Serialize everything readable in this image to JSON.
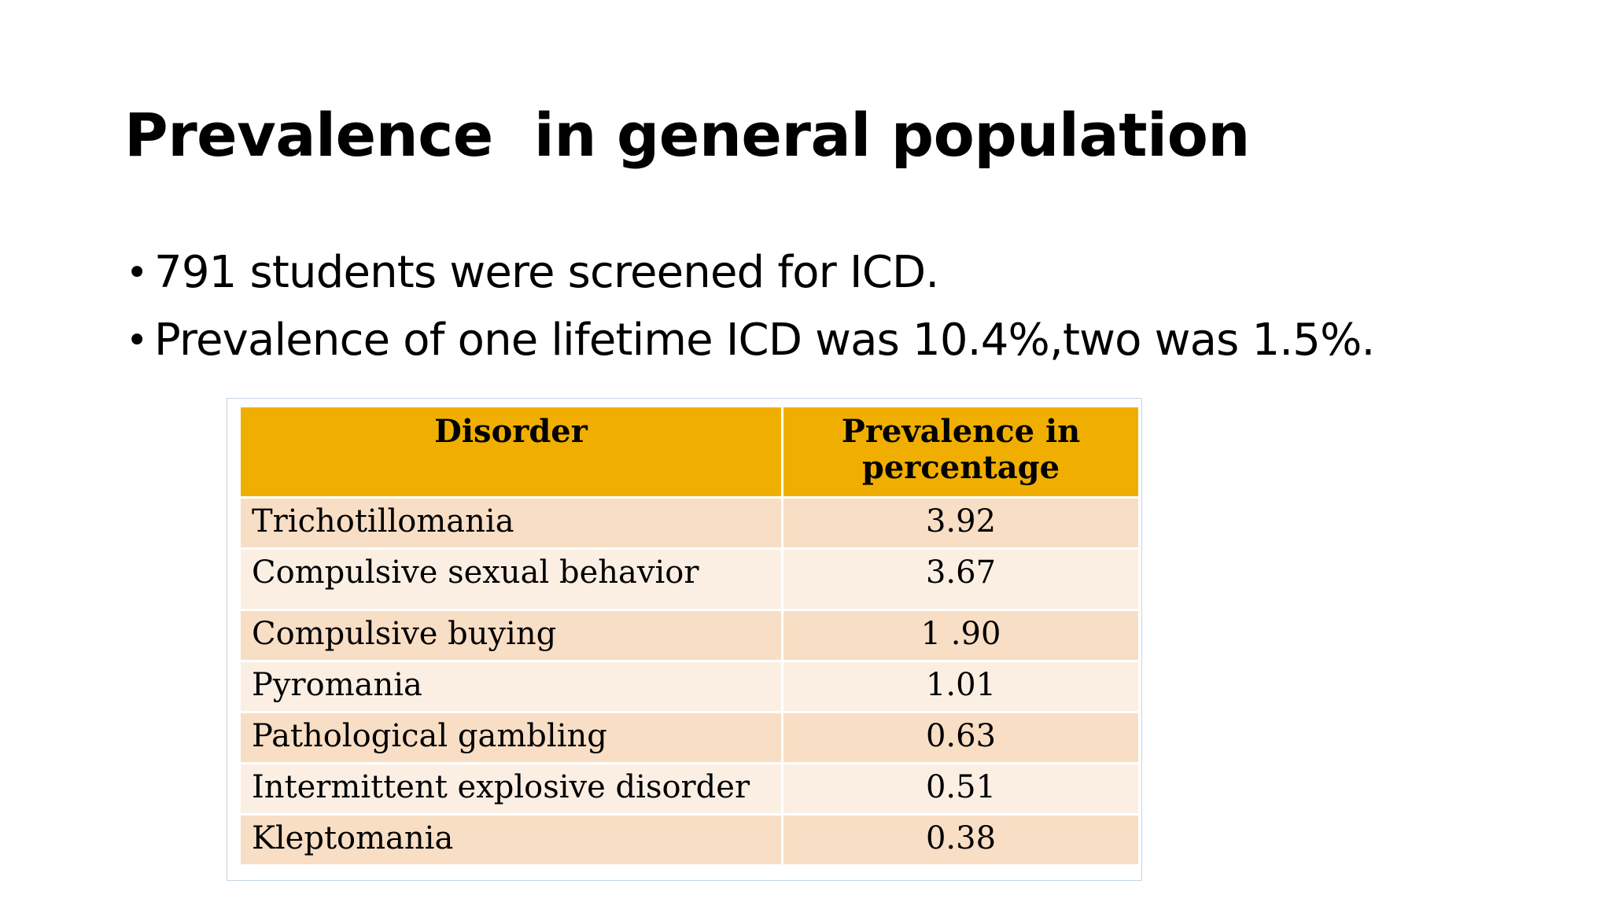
{
  "slide": {
    "title": "Prevalence  in general population",
    "bullets": [
      "791 students were screened for ICD.",
      "Prevalence of one lifetime ICD was 10.4%,two was 1.5%."
    ]
  },
  "table": {
    "headers": [
      "Disorder",
      "Prevalence in percentage"
    ],
    "rows": [
      {
        "disorder": "Trichotillomania",
        "value": "3.92"
      },
      {
        "disorder": "Compulsive sexual behavior",
        "value": "3.67"
      },
      {
        "disorder": "Compulsive buying",
        "value": "1 .90"
      },
      {
        "disorder": "Pyromania",
        "value": "1.01"
      },
      {
        "disorder": "Pathological gambling",
        "value": "0.63"
      },
      {
        "disorder": "Intermittent explosive disorder",
        "value": "0.51"
      },
      {
        "disorder": "Kleptomania",
        "value": "0.38"
      }
    ]
  },
  "colors": {
    "header_fill": "#f0af00",
    "row_dark": "#f7dec5",
    "row_light": "#fbefe4"
  }
}
